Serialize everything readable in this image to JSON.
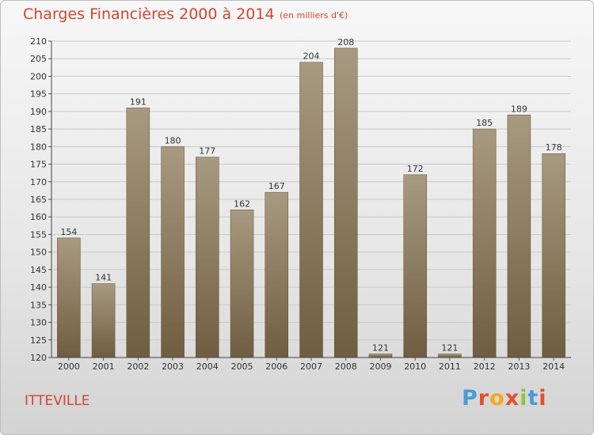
{
  "header": {
    "title": "Charges Financières 2000 à 2014",
    "unit": "(en milliers d'€)"
  },
  "footer": {
    "commune": "ITTEVILLE",
    "brand": "Proxiti",
    "brand_colors": [
      "#4b9bd6",
      "#e0522c",
      "#f2a91a",
      "#e0522c",
      "#8cc63f",
      "#4b9bd6",
      "#e0522c"
    ]
  },
  "colors": {
    "bar_top": "#a89a80",
    "bar_bottom": "#6f5d40",
    "grid": "#c9c9c9",
    "accent": "#d2462f"
  },
  "chart_data": {
    "type": "bar",
    "title": "Charges Financières 2000 à 2014",
    "subtitle": "(en milliers d'€)",
    "categories": [
      "2000",
      "2001",
      "2002",
      "2003",
      "2004",
      "2005",
      "2006",
      "2007",
      "2008",
      "2009",
      "2010",
      "2011",
      "2012",
      "2013",
      "2014"
    ],
    "values": [
      154,
      141,
      191,
      180,
      177,
      162,
      167,
      204,
      208,
      121,
      172,
      121,
      185,
      189,
      178
    ],
    "ylim": [
      120,
      210
    ],
    "yticks": [
      120,
      125,
      130,
      135,
      140,
      145,
      150,
      155,
      160,
      165,
      170,
      175,
      180,
      185,
      190,
      195,
      200,
      205,
      210
    ],
    "grid": true,
    "xlabel": "",
    "ylabel": ""
  }
}
